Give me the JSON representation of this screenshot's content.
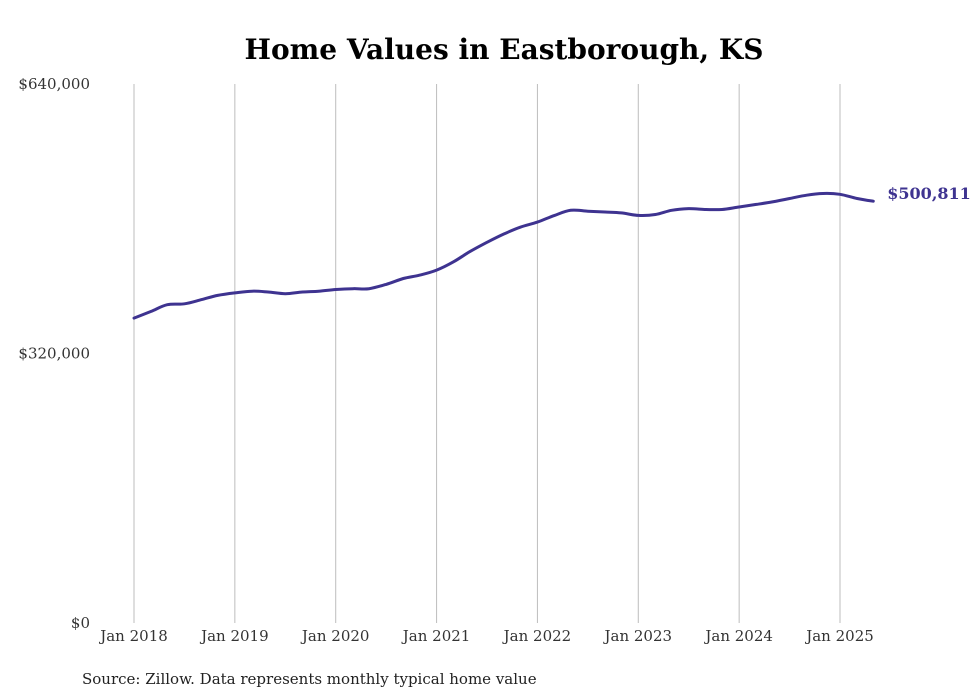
{
  "chart_data": {
    "type": "line",
    "title": "Home Values in Eastborough, KS",
    "source": "Source: Zillow. Data represents monthly typical home value",
    "ylim": [
      0,
      640000
    ],
    "yticks": [
      {
        "value": 0,
        "label": "$0"
      },
      {
        "value": 320000,
        "label": "$320,000"
      },
      {
        "value": 640000,
        "label": "$640,000"
      }
    ],
    "xlim": [
      2018.0,
      2025.33
    ],
    "xticks": [
      {
        "value": 2018,
        "label": "Jan 2018"
      },
      {
        "value": 2019,
        "label": "Jan 2019"
      },
      {
        "value": 2020,
        "label": "Jan 2020"
      },
      {
        "value": 2021,
        "label": "Jan 2021"
      },
      {
        "value": 2022,
        "label": "Jan 2022"
      },
      {
        "value": 2023,
        "label": "Jan 2023"
      },
      {
        "value": 2024,
        "label": "Jan 2024"
      },
      {
        "value": 2025,
        "label": "Jan 2025"
      }
    ],
    "grid": "vertical",
    "line_color": "#3e3390",
    "end_label": "$500,811",
    "series": [
      {
        "x": [
          2018.0,
          2018.17,
          2018.33,
          2018.5,
          2018.67,
          2018.83,
          2019.0,
          2019.17,
          2019.33,
          2019.5,
          2019.67,
          2019.83,
          2020.0,
          2020.17,
          2020.33,
          2020.5,
          2020.67,
          2020.83,
          2021.0,
          2021.17,
          2021.33,
          2021.5,
          2021.67,
          2021.83,
          2022.0,
          2022.17,
          2022.33,
          2022.5,
          2022.67,
          2022.83,
          2023.0,
          2023.17,
          2023.33,
          2023.5,
          2023.67,
          2023.83,
          2024.0,
          2024.17,
          2024.33,
          2024.5,
          2024.67,
          2024.83,
          2025.0,
          2025.17,
          2025.33
        ],
        "y": [
          362000,
          370000,
          378000,
          379000,
          384000,
          389000,
          392000,
          394000,
          393000,
          391000,
          393000,
          394000,
          396000,
          397000,
          397000,
          402000,
          409000,
          413000,
          419000,
          429000,
          441000,
          452000,
          462000,
          470000,
          476000,
          484000,
          490000,
          489000,
          488000,
          487000,
          484000,
          485000,
          490000,
          492000,
          491000,
          491000,
          494000,
          497000,
          500000,
          504000,
          508000,
          510000,
          509000,
          504000,
          500811
        ]
      }
    ]
  }
}
